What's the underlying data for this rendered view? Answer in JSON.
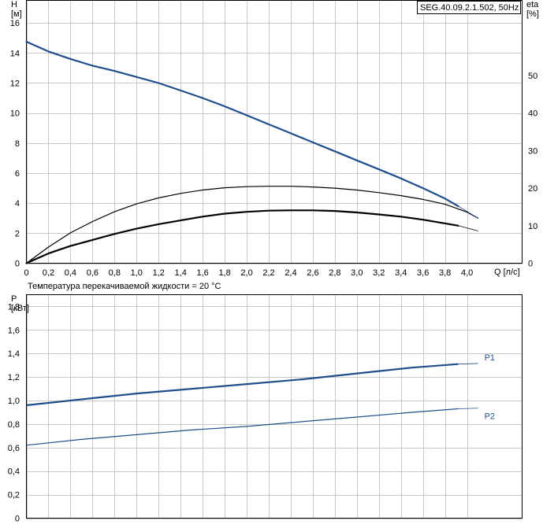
{
  "chart_data": [
    {
      "type": "line",
      "title": "SEG.40.09.2.1.502, 50Hz",
      "xlabel": "Q [л/с]",
      "ylabel": "H\n[м]",
      "y2label": "eta\n[%]",
      "xlim": [
        0,
        4.5
      ],
      "ylim": [
        0,
        17.5
      ],
      "y2lim": [
        0,
        70
      ],
      "x_ticks": [
        "0",
        "0,2",
        "0,4",
        "0,6",
        "0,8",
        "1,0",
        "1,2",
        "1,4",
        "1,6",
        "1,8",
        "2,0",
        "2,2",
        "2,4",
        "2,6",
        "2,8",
        "3,0",
        "3,2",
        "3,4",
        "3,6",
        "3,8",
        "4,0"
      ],
      "y_ticks": [
        "0",
        "2",
        "4",
        "6",
        "8",
        "10",
        "12",
        "14",
        "16"
      ],
      "y2_ticks": [
        "0",
        "10",
        "20",
        "30",
        "40",
        "50"
      ],
      "note": "Температура перекачиваемой жидкости = 20 °C",
      "grid": true,
      "series": [
        {
          "axis": "left",
          "color": "#1f4e8c",
          "x": [
            0,
            0.2,
            0.4,
            0.6,
            0.8,
            1.0,
            1.2,
            1.4,
            1.6,
            1.8,
            2.0,
            2.2,
            2.4,
            2.6,
            2.8,
            3.0,
            3.2,
            3.4,
            3.6,
            3.8,
            3.92
          ],
          "y": [
            14.75,
            14.1,
            13.6,
            13.15,
            12.8,
            12.4,
            12.0,
            11.5,
            11.0,
            10.45,
            9.85,
            9.25,
            8.65,
            8.05,
            7.45,
            6.85,
            6.25,
            5.65,
            5.0,
            4.3,
            3.8
          ]
        },
        {
          "axis": "right",
          "color": "#000000",
          "x": [
            0,
            0.2,
            0.4,
            0.6,
            0.8,
            1.0,
            1.2,
            1.4,
            1.6,
            1.8,
            2.0,
            2.2,
            2.4,
            2.6,
            2.8,
            3.0,
            3.2,
            3.4,
            3.6,
            3.8,
            4.0,
            4.1
          ],
          "y": [
            0,
            4.3,
            8.1,
            11.1,
            13.7,
            15.8,
            17.4,
            18.6,
            19.5,
            20.1,
            20.4,
            20.5,
            20.5,
            20.3,
            20.0,
            19.5,
            18.8,
            18.0,
            17.0,
            15.7,
            13.6,
            12.0
          ]
        },
        {
          "axis": "left",
          "color": "#000000",
          "x": [
            0,
            0.2,
            0.4,
            0.6,
            0.8,
            1.0,
            1.2,
            1.4,
            1.6,
            1.8,
            2.0,
            2.2,
            2.4,
            2.6,
            2.8,
            3.0,
            3.2,
            3.4,
            3.6,
            3.8,
            3.92
          ],
          "y": [
            0,
            0.65,
            1.15,
            1.55,
            1.95,
            2.3,
            2.6,
            2.85,
            3.1,
            3.3,
            3.42,
            3.5,
            3.52,
            3.52,
            3.48,
            3.38,
            3.25,
            3.1,
            2.9,
            2.65,
            2.5
          ]
        }
      ]
    },
    {
      "type": "line",
      "xlabel": "",
      "ylabel": "P\n[кВт]",
      "xlim": [
        0,
        4.5
      ],
      "ylim": [
        0,
        1.9
      ],
      "y_ticks": [
        "0",
        "0,2",
        "0,4",
        "0,6",
        "0,8",
        "1,0",
        "1,2",
        "1,4",
        "1,6",
        "1,8"
      ],
      "grid": true,
      "series": [
        {
          "name": "P1",
          "color": "#1f4e8c",
          "x": [
            0,
            0.5,
            1.0,
            1.5,
            2.0,
            2.5,
            3.0,
            3.5,
            3.92
          ],
          "y": [
            0.96,
            1.01,
            1.06,
            1.1,
            1.14,
            1.18,
            1.23,
            1.28,
            1.31
          ]
        },
        {
          "name": "P2",
          "color": "#1f4e8c",
          "x": [
            0,
            0.5,
            1.0,
            1.5,
            2.0,
            2.5,
            3.0,
            3.5,
            3.92
          ],
          "y": [
            0.62,
            0.67,
            0.71,
            0.75,
            0.78,
            0.82,
            0.86,
            0.9,
            0.93
          ]
        }
      ]
    }
  ]
}
